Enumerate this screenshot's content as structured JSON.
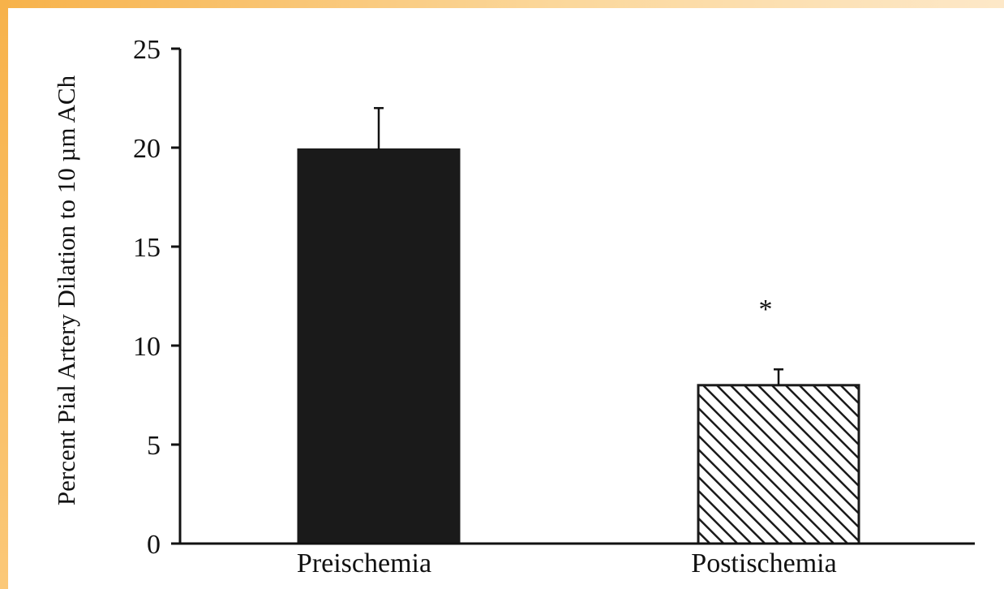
{
  "chart_data": {
    "type": "bar",
    "categories": [
      "Preischemia",
      "Postischemia"
    ],
    "values": [
      19.9,
      8.0
    ],
    "errors": [
      2.1,
      0.8
    ],
    "ylabel": "Percent Pial Artery Dilation to 10 µm ACh",
    "xlabel": "",
    "ylim": [
      0,
      25
    ],
    "yticks": [
      0,
      5,
      10,
      15,
      20,
      25
    ],
    "annotations": [
      {
        "category": "Postischemia",
        "text": "*"
      }
    ],
    "bar_styles": [
      "solid",
      "hatched"
    ],
    "colors": {
      "bar_fill": "#1a1a1a",
      "hatch_line": "#1a1a1a",
      "axis": "#111111",
      "frame_accent": "#f7b24a"
    },
    "grid": false
  }
}
